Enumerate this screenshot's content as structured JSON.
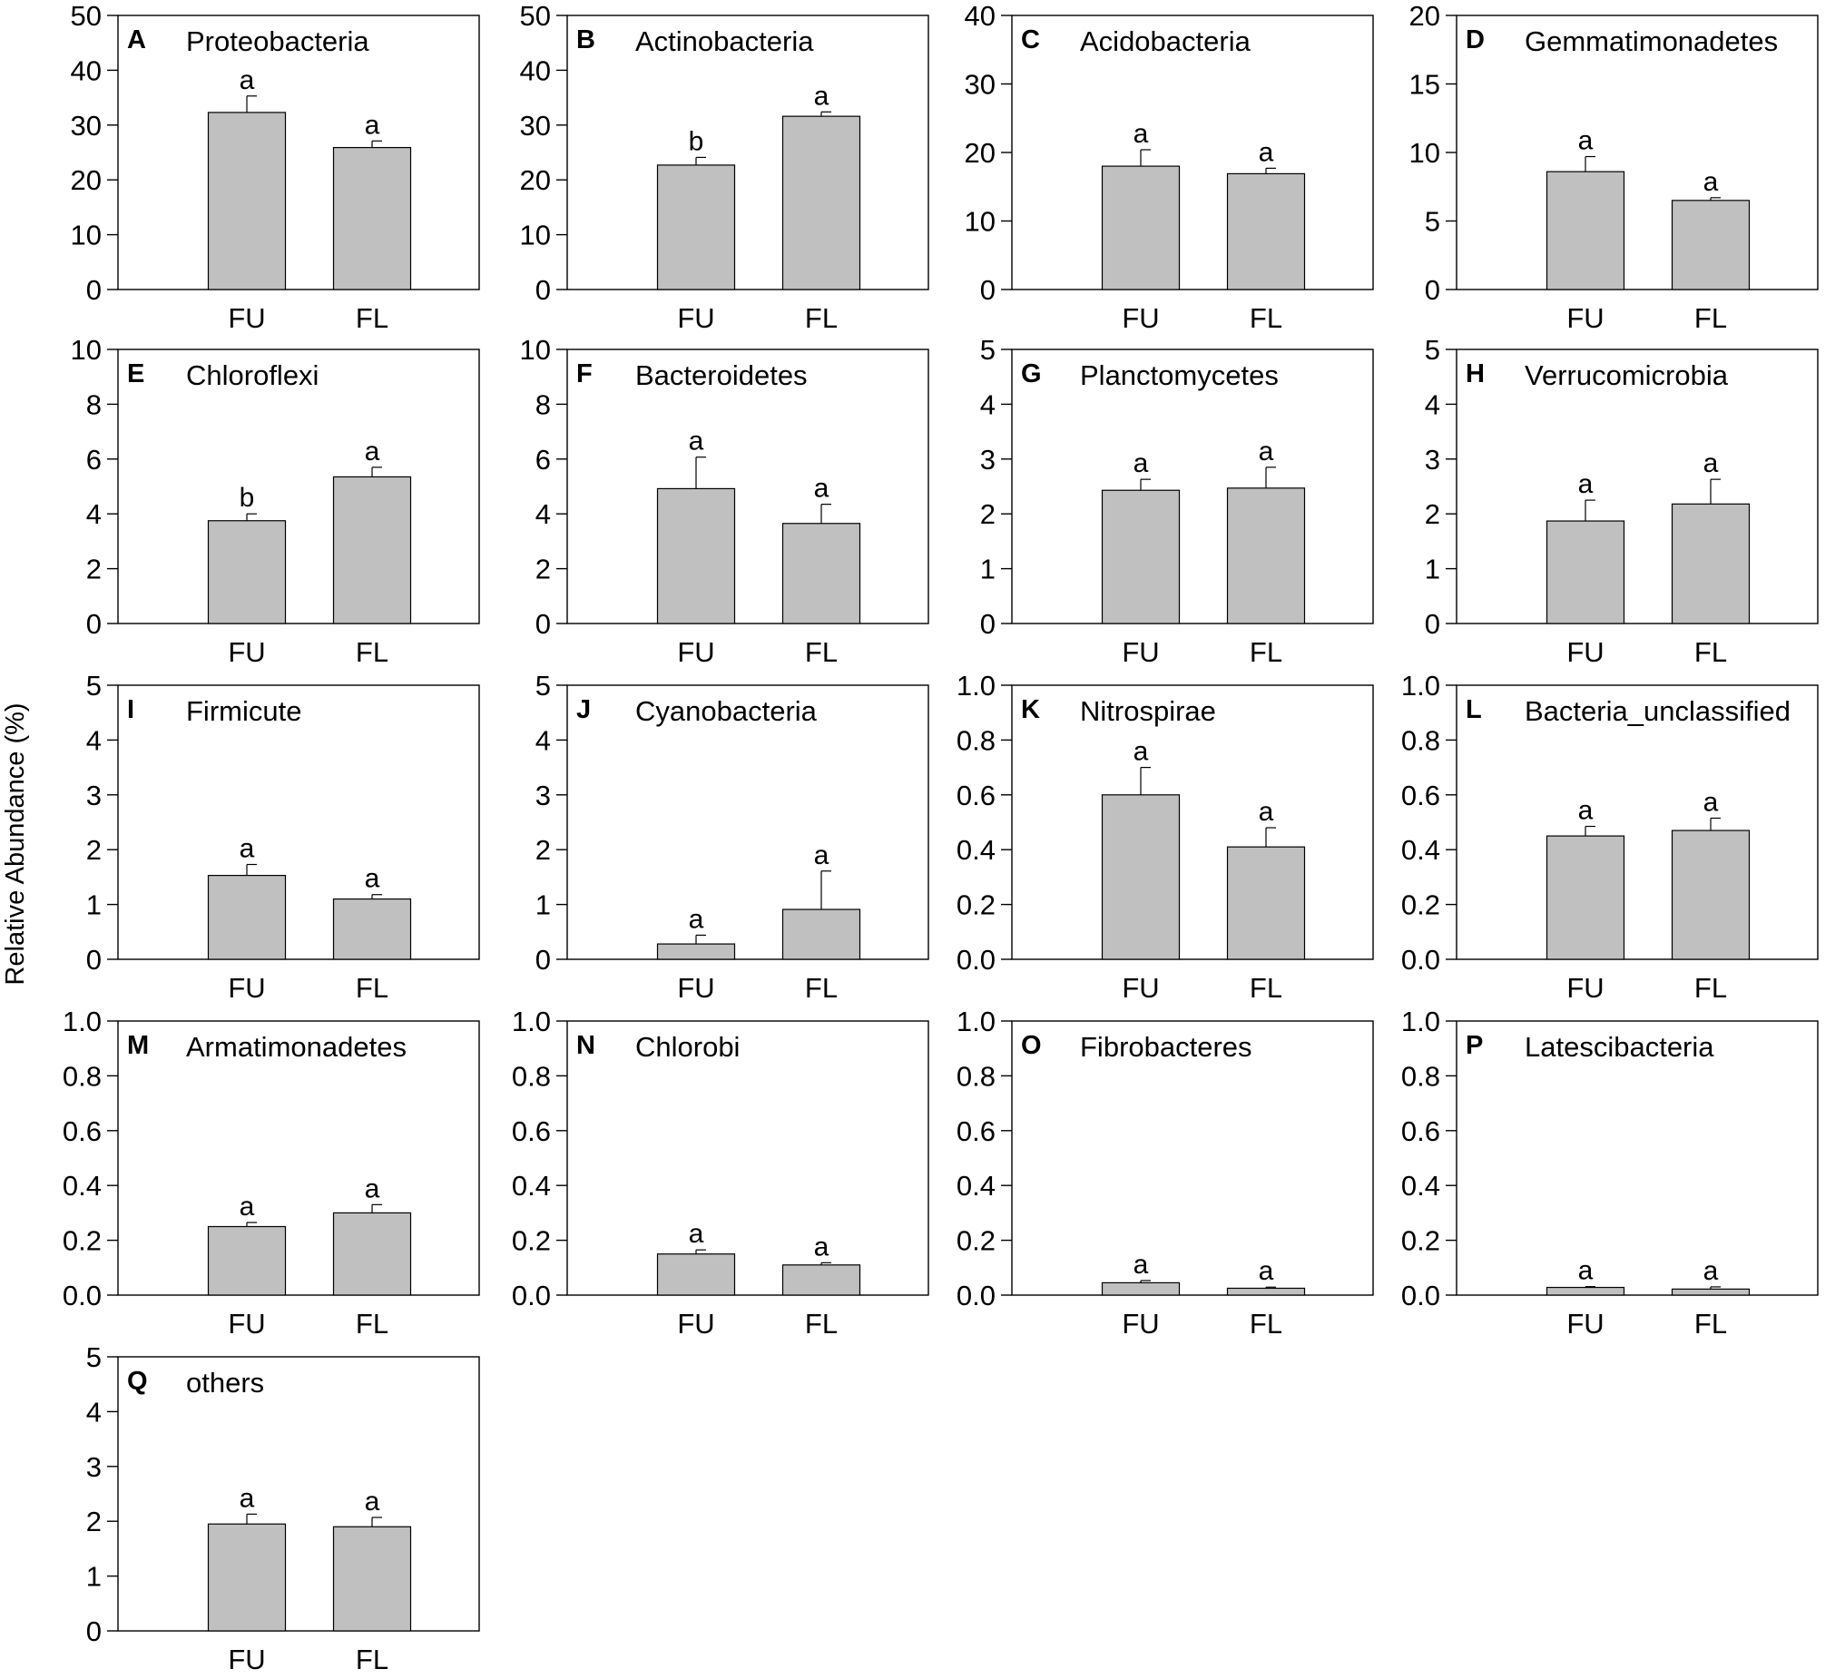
{
  "figure": {
    "ylabel": "Relative Abundance (%)",
    "bar_color": "#c0c0c0",
    "axis_color": "#000000"
  },
  "chart_data": [
    {
      "type": "bar",
      "letter": "A",
      "title": "Proteobacteria",
      "categories": [
        "FU",
        "FL"
      ],
      "values": [
        32.3,
        25.9
      ],
      "errors": [
        3.0,
        1.2
      ],
      "sig": [
        "a",
        "a"
      ],
      "ylim": [
        0,
        50
      ],
      "yticks": [
        "0",
        "10",
        "20",
        "30",
        "40",
        "50"
      ],
      "xlabel": "",
      "ylabel": "Relative Abundance (%)"
    },
    {
      "type": "bar",
      "letter": "B",
      "title": "Actinobacteria",
      "categories": [
        "FU",
        "FL"
      ],
      "values": [
        22.7,
        31.6
      ],
      "errors": [
        1.4,
        0.8
      ],
      "sig": [
        "b",
        "a"
      ],
      "ylim": [
        0,
        50
      ],
      "yticks": [
        "0",
        "10",
        "20",
        "30",
        "40",
        "50"
      ],
      "xlabel": "",
      "ylabel": "Relative Abundance (%)"
    },
    {
      "type": "bar",
      "letter": "C",
      "title": "Acidobacteria",
      "categories": [
        "FU",
        "FL"
      ],
      "values": [
        18.0,
        16.9
      ],
      "errors": [
        2.4,
        0.8
      ],
      "sig": [
        "a",
        "a"
      ],
      "ylim": [
        0,
        40
      ],
      "yticks": [
        "0",
        "10",
        "20",
        "30",
        "40"
      ],
      "xlabel": "",
      "ylabel": "Relative Abundance (%)"
    },
    {
      "type": "bar",
      "letter": "D",
      "title": "Gemmatimonadetes",
      "categories": [
        "FU",
        "FL"
      ],
      "values": [
        8.6,
        6.5
      ],
      "errors": [
        1.1,
        0.2
      ],
      "sig": [
        "a",
        "a"
      ],
      "ylim": [
        0,
        20
      ],
      "yticks": [
        "0",
        "5",
        "10",
        "15",
        "20"
      ],
      "xlabel": "",
      "ylabel": "Relative Abundance (%)"
    },
    {
      "type": "bar",
      "letter": "E",
      "title": "Chloroflexi",
      "categories": [
        "FU",
        "FL"
      ],
      "values": [
        3.75,
        5.35
      ],
      "errors": [
        0.25,
        0.35
      ],
      "sig": [
        "b",
        "a"
      ],
      "ylim": [
        0,
        10
      ],
      "yticks": [
        "0",
        "2",
        "4",
        "6",
        "8",
        "10"
      ],
      "xlabel": "",
      "ylabel": "Relative Abundance (%)"
    },
    {
      "type": "bar",
      "letter": "F",
      "title": "Bacteroidetes",
      "categories": [
        "FU",
        "FL"
      ],
      "values": [
        4.92,
        3.65
      ],
      "errors": [
        1.15,
        0.7
      ],
      "sig": [
        "a",
        "a"
      ],
      "ylim": [
        0,
        10
      ],
      "yticks": [
        "0",
        "2",
        "4",
        "6",
        "8",
        "10"
      ],
      "xlabel": "",
      "ylabel": "Relative Abundance (%)"
    },
    {
      "type": "bar",
      "letter": "G",
      "title": "Planctomycetes",
      "categories": [
        "FU",
        "FL"
      ],
      "values": [
        2.43,
        2.47
      ],
      "errors": [
        0.2,
        0.38
      ],
      "sig": [
        "a",
        "a"
      ],
      "ylim": [
        0,
        5
      ],
      "yticks": [
        "0",
        "1",
        "2",
        "3",
        "4",
        "5"
      ],
      "xlabel": "",
      "ylabel": "Relative Abundance (%)"
    },
    {
      "type": "bar",
      "letter": "H",
      "title": "Verrucomicrobia",
      "categories": [
        "FU",
        "FL"
      ],
      "values": [
        1.87,
        2.18
      ],
      "errors": [
        0.38,
        0.45
      ],
      "sig": [
        "a",
        "a"
      ],
      "ylim": [
        0,
        5
      ],
      "yticks": [
        "0",
        "1",
        "2",
        "3",
        "4",
        "5"
      ],
      "xlabel": "",
      "ylabel": "Relative Abundance (%)"
    },
    {
      "type": "bar",
      "letter": "I",
      "title": "Firmicute",
      "categories": [
        "FU",
        "FL"
      ],
      "values": [
        1.53,
        1.1
      ],
      "errors": [
        0.2,
        0.08
      ],
      "sig": [
        "a",
        "a"
      ],
      "ylim": [
        0,
        5
      ],
      "yticks": [
        "0",
        "1",
        "2",
        "3",
        "4",
        "5"
      ],
      "xlabel": "",
      "ylabel": "Relative Abundance (%)"
    },
    {
      "type": "bar",
      "letter": "J",
      "title": "Cyanobacteria",
      "categories": [
        "FU",
        "FL"
      ],
      "values": [
        0.28,
        0.91
      ],
      "errors": [
        0.16,
        0.7
      ],
      "sig": [
        "a",
        "a"
      ],
      "ylim": [
        0,
        5
      ],
      "yticks": [
        "0",
        "1",
        "2",
        "3",
        "4",
        "5"
      ],
      "xlabel": "",
      "ylabel": "Relative Abundance (%)"
    },
    {
      "type": "bar",
      "letter": "K",
      "title": "Nitrospirae",
      "categories": [
        "FU",
        "FL"
      ],
      "values": [
        0.6,
        0.41
      ],
      "errors": [
        0.1,
        0.07
      ],
      "sig": [
        "a",
        "a"
      ],
      "ylim": [
        0,
        1
      ],
      "yticks": [
        "0.0",
        "0.2",
        "0.4",
        "0.6",
        "0.8",
        "1.0"
      ],
      "xlabel": "",
      "ylabel": "Relative Abundance (%)"
    },
    {
      "type": "bar",
      "letter": "L",
      "title": "Bacteria_unclassified",
      "categories": [
        "FU",
        "FL"
      ],
      "values": [
        0.45,
        0.47
      ],
      "errors": [
        0.035,
        0.045
      ],
      "sig": [
        "a",
        "a"
      ],
      "ylim": [
        0,
        1
      ],
      "yticks": [
        "0.0",
        "0.2",
        "0.4",
        "0.6",
        "0.8",
        "1.0"
      ],
      "xlabel": "",
      "ylabel": "Relative Abundance (%)"
    },
    {
      "type": "bar",
      "letter": "M",
      "title": "Armatimonadetes",
      "categories": [
        "FU",
        "FL"
      ],
      "values": [
        0.25,
        0.3
      ],
      "errors": [
        0.015,
        0.03
      ],
      "sig": [
        "a",
        "a"
      ],
      "ylim": [
        0,
        1
      ],
      "yticks": [
        "0.0",
        "0.2",
        "0.4",
        "0.6",
        "0.8",
        "1.0"
      ],
      "xlabel": "",
      "ylabel": "Relative Abundance (%)"
    },
    {
      "type": "bar",
      "letter": "N",
      "title": "Chlorobi",
      "categories": [
        "FU",
        "FL"
      ],
      "values": [
        0.15,
        0.11
      ],
      "errors": [
        0.015,
        0.008
      ],
      "sig": [
        "a",
        "a"
      ],
      "ylim": [
        0,
        1
      ],
      "yticks": [
        "0.0",
        "0.2",
        "0.4",
        "0.6",
        "0.8",
        "1.0"
      ],
      "xlabel": "",
      "ylabel": "Relative Abundance (%)"
    },
    {
      "type": "bar",
      "letter": "O",
      "title": "Fibrobacteres",
      "categories": [
        "FU",
        "FL"
      ],
      "values": [
        0.045,
        0.025
      ],
      "errors": [
        0.008,
        0.004
      ],
      "sig": [
        "a",
        "a"
      ],
      "ylim": [
        0,
        1
      ],
      "yticks": [
        "0.0",
        "0.2",
        "0.4",
        "0.6",
        "0.8",
        "1.0"
      ],
      "xlabel": "",
      "ylabel": "Relative Abundance (%)"
    },
    {
      "type": "bar",
      "letter": "P",
      "title": "Latescibacteria",
      "categories": [
        "FU",
        "FL"
      ],
      "values": [
        0.028,
        0.022
      ],
      "errors": [
        0.003,
        0.008
      ],
      "sig": [
        "a",
        "a"
      ],
      "ylim": [
        0,
        1
      ],
      "yticks": [
        "0.0",
        "0.2",
        "0.4",
        "0.6",
        "0.8",
        "1.0"
      ],
      "xlabel": "",
      "ylabel": "Relative Abundance (%)"
    },
    {
      "type": "bar",
      "letter": "Q",
      "title": "others",
      "categories": [
        "FU",
        "FL"
      ],
      "values": [
        1.95,
        1.9
      ],
      "errors": [
        0.18,
        0.17
      ],
      "sig": [
        "a",
        "a"
      ],
      "ylim": [
        0,
        5
      ],
      "yticks": [
        "0",
        "1",
        "2",
        "3",
        "4",
        "5"
      ],
      "xlabel": "",
      "ylabel": "Relative Abundance (%)"
    }
  ]
}
